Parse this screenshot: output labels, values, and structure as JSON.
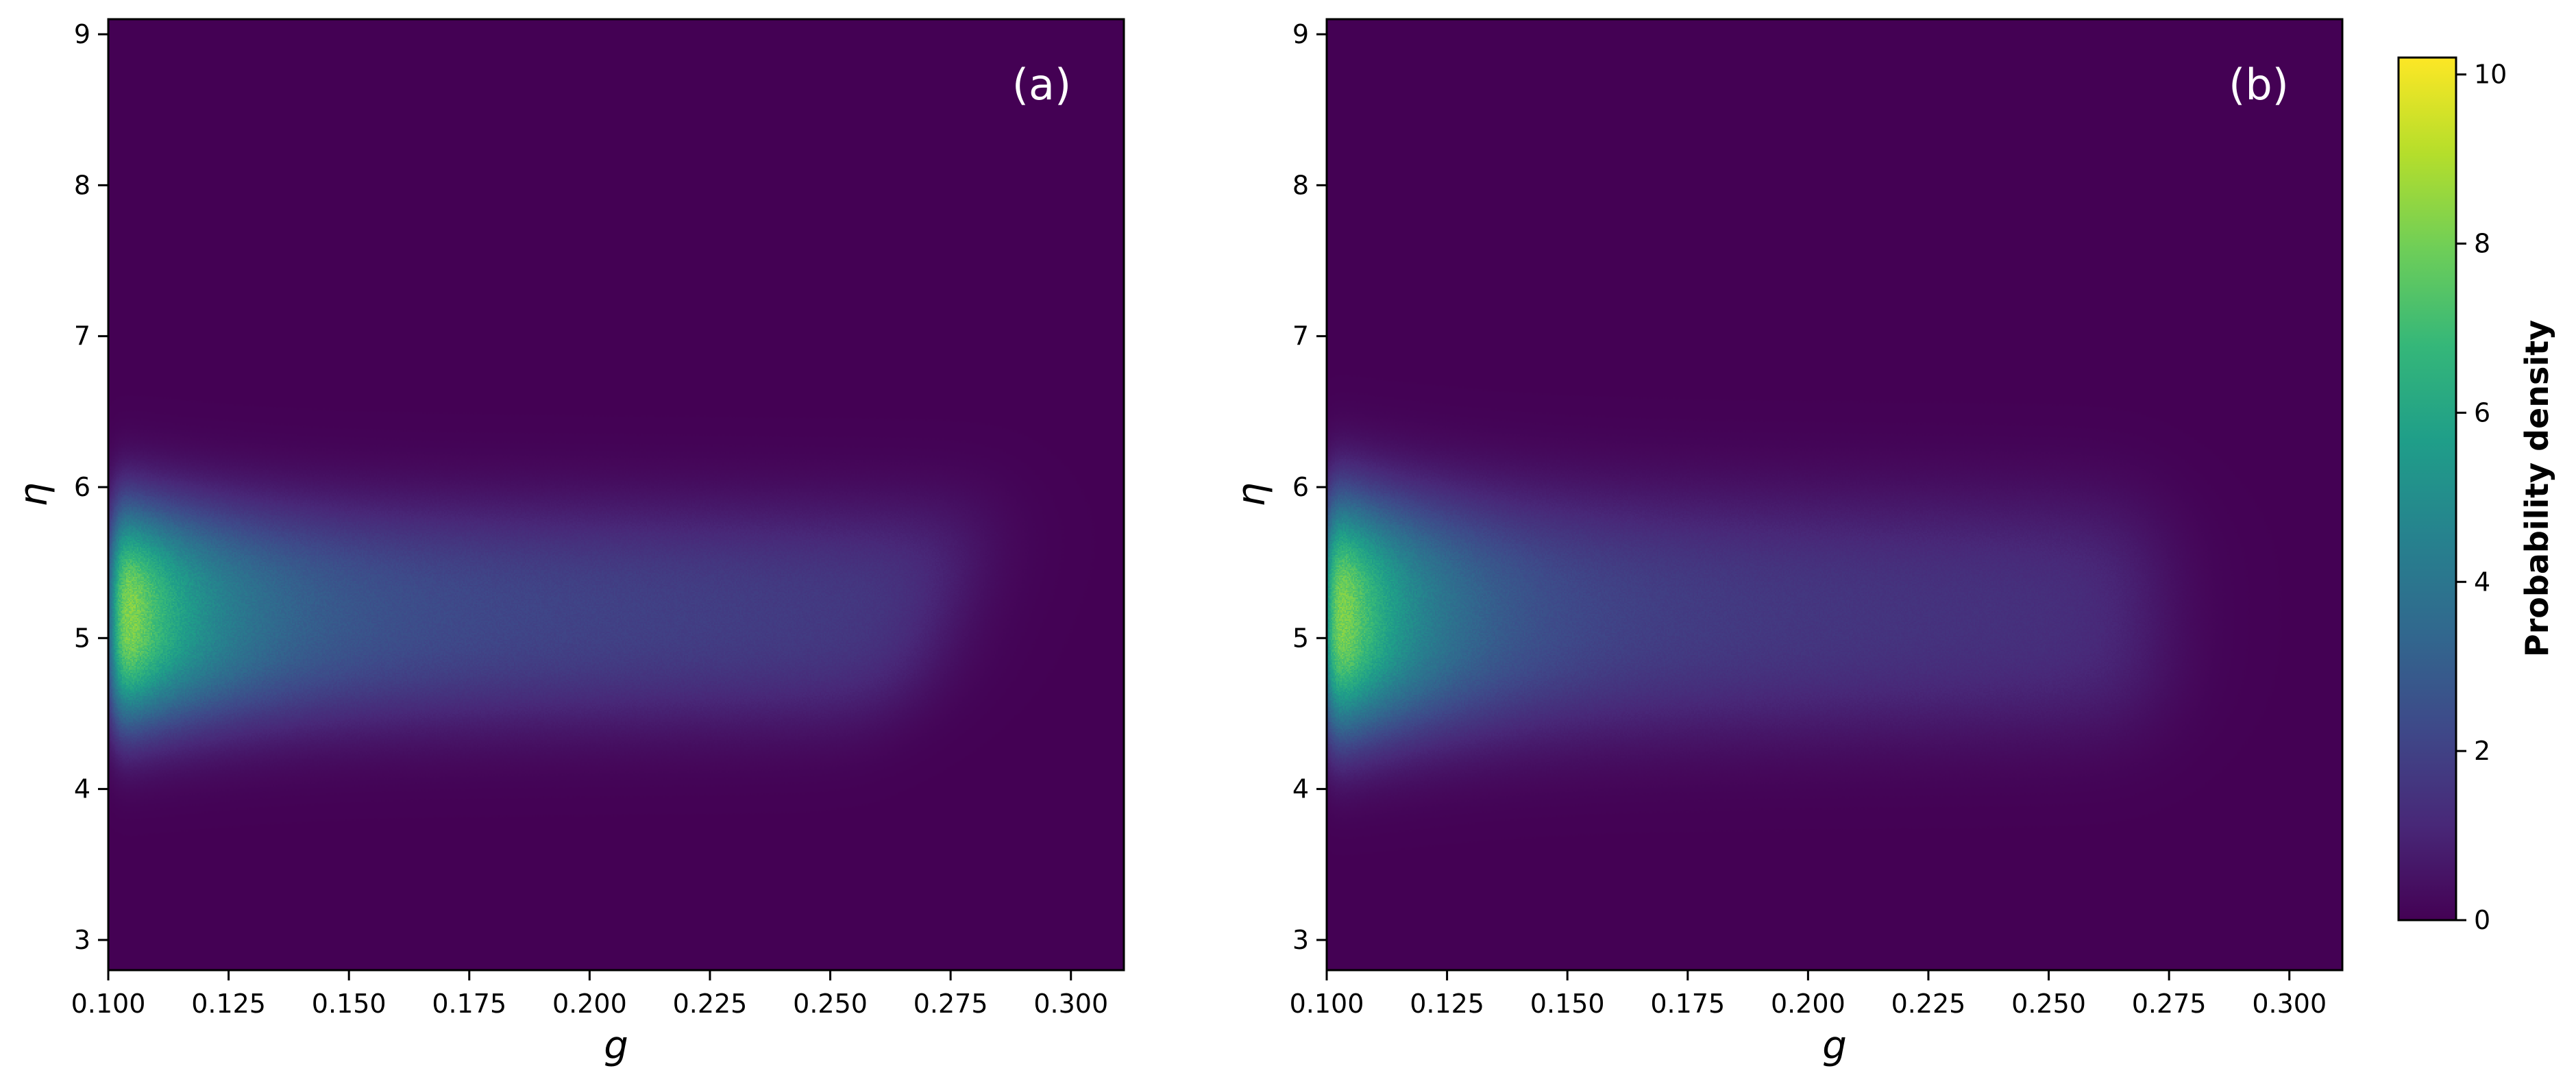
{
  "chart_data": {
    "type": "heatmap",
    "x_ticks": [
      "0.100",
      "0.125",
      "0.150",
      "0.175",
      "0.200",
      "0.225",
      "0.250",
      "0.275",
      "0.300"
    ],
    "y_ticks": [
      "3",
      "4",
      "5",
      "6",
      "7",
      "8",
      "9"
    ],
    "x_range": [
      0.1,
      0.311
    ],
    "y_range": [
      2.8,
      9.1
    ],
    "colormap": "viridis",
    "colormap_stops": [
      "#440154",
      "#482878",
      "#3e4989",
      "#31688e",
      "#26828e",
      "#1f9e89",
      "#35b779",
      "#6ece58",
      "#b5de2b",
      "#fde725"
    ],
    "panels": [
      {
        "panel_label": "(a)",
        "xlabel": "g",
        "ylabel": "η",
        "density_model": {
          "peak_density": 10.0,
          "peak_eta": 5.15,
          "eta_spread": 0.55,
          "g_min_edge": 0.101,
          "g_max_edge_at_eta_low": 0.26,
          "g_max_edge_at_eta_high": 0.29,
          "plateau_density": 2.5
        }
      },
      {
        "panel_label": "(b)",
        "xlabel": "g",
        "ylabel": "η",
        "density_model": {
          "peak_density": 10.0,
          "peak_eta": 5.15,
          "eta_spread": 0.6,
          "g_min_edge": 0.1,
          "g_max_edge_at_eta_low": 0.272,
          "g_max_edge_at_eta_high": 0.272,
          "plateau_density": 2.0
        }
      }
    ],
    "colorbar": {
      "label": "Probability density",
      "ticks": [
        "0",
        "2",
        "4",
        "6",
        "8",
        "10"
      ],
      "range": [
        0,
        10.2
      ]
    }
  }
}
